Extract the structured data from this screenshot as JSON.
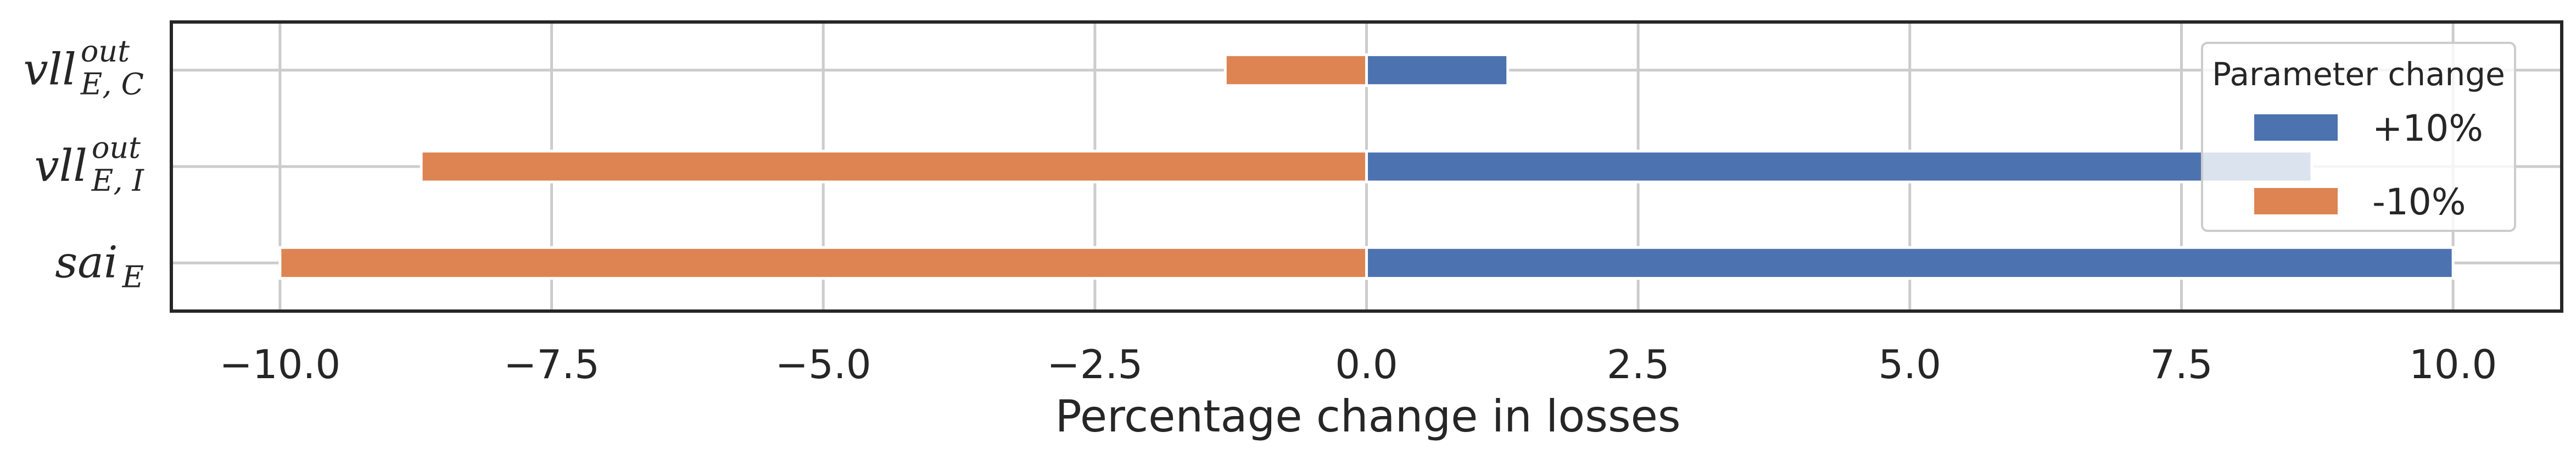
{
  "chart_data": {
    "type": "bar",
    "orientation": "horizontal",
    "xlabel": "Percentage change in losses",
    "xlim": [
      -11,
      11
    ],
    "xticks": [
      -10.0,
      -7.5,
      -5.0,
      -2.5,
      0.0,
      2.5,
      5.0,
      7.5,
      10.0
    ],
    "xtick_labels": [
      "−10.0",
      "−7.5",
      "−5.0",
      "−2.5",
      "0.0",
      "2.5",
      "5.0",
      "7.5",
      "10.0"
    ],
    "grid": true,
    "categories": [
      {
        "base": "vll",
        "sup": "out",
        "sub": "E, C"
      },
      {
        "base": "vll",
        "sup": "out",
        "sub": "E, I"
      },
      {
        "base": "sai",
        "sup": "",
        "sub": "E"
      }
    ],
    "series": [
      {
        "name": "+10%",
        "color": "#4c72b0",
        "values": [
          1.3,
          8.7,
          10.0
        ]
      },
      {
        "name": "-10%",
        "color": "#dd8452",
        "values": [
          -1.3,
          -8.7,
          -10.0
        ]
      }
    ],
    "legend": {
      "title": "Parameter change",
      "position": "upper-right"
    }
  }
}
